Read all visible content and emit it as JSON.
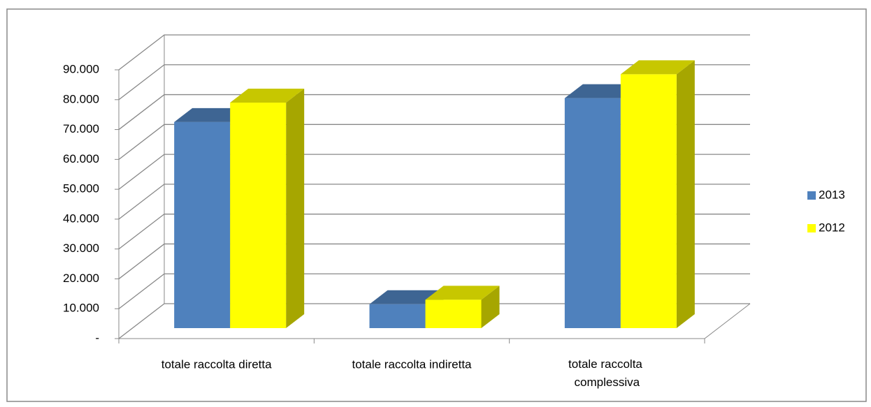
{
  "chart_data": {
    "type": "bar3d",
    "categories": [
      "totale raccolta diretta",
      "totale raccolta indiretta",
      "totale raccolta complessiva"
    ],
    "series": [
      {
        "name": "2013",
        "color": "#4f81bd",
        "values": [
          69000,
          8000,
          77000
        ]
      },
      {
        "name": "2012",
        "color": "#ffff00",
        "values": [
          75500,
          9500,
          85000
        ]
      }
    ],
    "ylim": [
      0,
      90000
    ],
    "yticks": [
      {
        "value": 0,
        "label": "-"
      },
      {
        "value": 10000,
        "label": "10.000"
      },
      {
        "value": 20000,
        "label": "20.000"
      },
      {
        "value": 30000,
        "label": "30.000"
      },
      {
        "value": 40000,
        "label": "40.000"
      },
      {
        "value": 50000,
        "label": "50.000"
      },
      {
        "value": 60000,
        "label": "60.000"
      },
      {
        "value": 70000,
        "label": "70.000"
      },
      {
        "value": 80000,
        "label": "80.000"
      },
      {
        "value": 90000,
        "label": "90.000"
      }
    ],
    "grid": true,
    "legend": "right"
  }
}
